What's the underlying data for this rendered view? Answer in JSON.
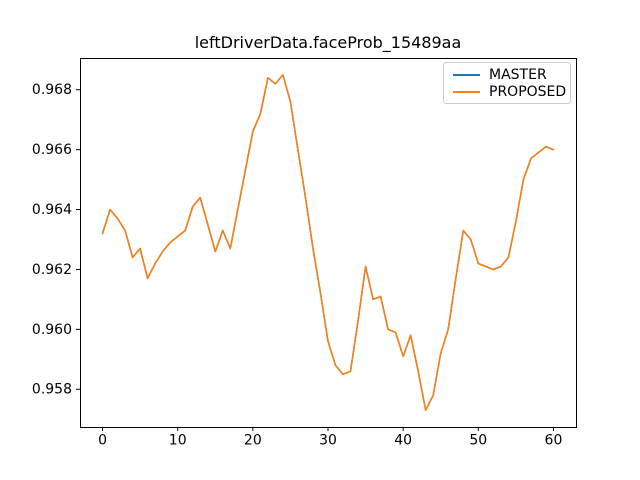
{
  "title": "leftDriverData.faceProb_15489aa",
  "colors": {
    "master_line": "#1f77b4",
    "proposed_line": "#ff7f0e",
    "spine": "#000000",
    "legend_border": "#cccccc",
    "background": "#ffffff",
    "text": "#000000"
  },
  "chart_data": {
    "type": "line",
    "title": "leftDriverData.faceProb_15489aa",
    "xlabel": "",
    "ylabel": "",
    "grid": false,
    "legend_position": "upper right",
    "xlim": [
      -3,
      63
    ],
    "x_ticks": [
      0,
      10,
      20,
      30,
      40,
      50,
      60
    ],
    "x_tick_labels": [
      "0",
      "10",
      "20",
      "30",
      "40",
      "50",
      "60"
    ],
    "y_ticks": [
      0.958,
      0.96,
      0.962,
      0.964,
      0.966,
      0.968
    ],
    "y_tick_labels": [
      "0.958",
      "0.960",
      "0.962",
      "0.964",
      "0.966",
      "0.968"
    ],
    "x": [
      0,
      1,
      2,
      3,
      4,
      5,
      6,
      7,
      8,
      9,
      10,
      11,
      12,
      13,
      14,
      15,
      16,
      17,
      18,
      19,
      20,
      21,
      22,
      23,
      24,
      25,
      26,
      27,
      28,
      29,
      30,
      31,
      32,
      33,
      34,
      35,
      36,
      37,
      38,
      39,
      40,
      41,
      42,
      43,
      44,
      45,
      46,
      47,
      48,
      49,
      50,
      51,
      52,
      53,
      54,
      55,
      56,
      57,
      58,
      59,
      60
    ],
    "series": [
      {
        "name": "MASTER",
        "color": "#1f77b4",
        "values": [
          0.9632,
          0.964,
          0.9637,
          0.9633,
          0.9624,
          0.9627,
          0.9617,
          0.9622,
          0.9626,
          0.9629,
          0.9631,
          0.9633,
          0.9641,
          0.9644,
          0.9635,
          0.9626,
          0.9633,
          0.9627,
          0.964,
          0.9653,
          0.9666,
          0.9672,
          0.9684,
          0.9682,
          0.9685,
          0.9676,
          0.966,
          0.9644,
          0.9627,
          0.9612,
          0.9596,
          0.9588,
          0.9585,
          0.9586,
          0.9603,
          0.9621,
          0.961,
          0.9611,
          0.96,
          0.9599,
          0.9591,
          0.9598,
          0.9586,
          0.9573,
          0.9578,
          0.9592,
          0.96,
          0.9617,
          0.9633,
          0.963,
          0.9622,
          0.9621,
          0.962,
          0.9621,
          0.9624,
          0.9636,
          0.965,
          0.9657,
          0.9659,
          0.9661,
          0.966
        ]
      },
      {
        "name": "PROPOSED",
        "color": "#ff7f0e",
        "values": [
          0.9632,
          0.964,
          0.9637,
          0.9633,
          0.9624,
          0.9627,
          0.9617,
          0.9622,
          0.9626,
          0.9629,
          0.9631,
          0.9633,
          0.9641,
          0.9644,
          0.9635,
          0.9626,
          0.9633,
          0.9627,
          0.964,
          0.9653,
          0.9666,
          0.9672,
          0.9684,
          0.9682,
          0.9685,
          0.9676,
          0.966,
          0.9644,
          0.9627,
          0.9612,
          0.9596,
          0.9588,
          0.9585,
          0.9586,
          0.9603,
          0.9621,
          0.961,
          0.9611,
          0.96,
          0.9599,
          0.9591,
          0.9598,
          0.9586,
          0.9573,
          0.9578,
          0.9592,
          0.96,
          0.9617,
          0.9633,
          0.963,
          0.9622,
          0.9621,
          0.962,
          0.9621,
          0.9624,
          0.9636,
          0.965,
          0.9657,
          0.9659,
          0.9661,
          0.966
        ]
      }
    ]
  }
}
